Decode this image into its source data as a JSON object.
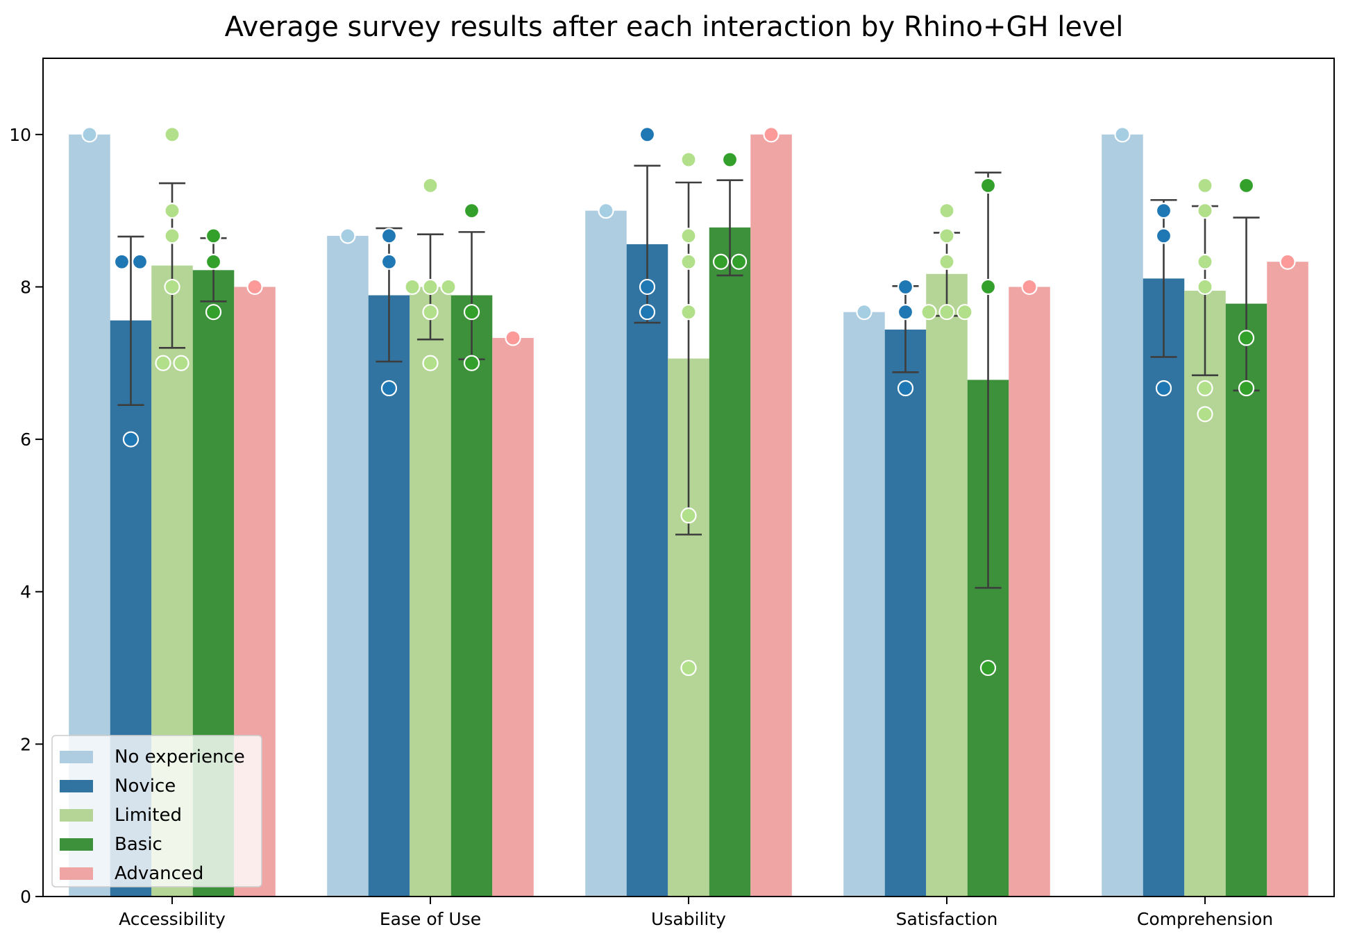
{
  "chart_data": {
    "type": "bar",
    "title": "Average survey results after each interaction by Rhino+GH level",
    "xlabel": "",
    "ylabel": "",
    "ylim": [
      0,
      11
    ],
    "yticks": [
      0,
      2,
      4,
      6,
      8,
      10
    ],
    "grid": false,
    "legend_position": "lower-left",
    "categories": [
      "Accessibility",
      "Ease of Use",
      "Usability",
      "Satisfaction",
      "Comprehension"
    ],
    "series": [
      {
        "name": "No experience",
        "color": "#aecde0",
        "point_color": "#a6cee3",
        "values": [
          10.0,
          8.67,
          9.0,
          7.67,
          10.0
        ],
        "error_low": [
          null,
          null,
          null,
          null,
          null
        ],
        "error_high": [
          null,
          null,
          null,
          null,
          null
        ],
        "points": [
          [
            10.0
          ],
          [
            8.67
          ],
          [
            9.0
          ],
          [
            7.67
          ],
          [
            10.0
          ]
        ]
      },
      {
        "name": "Novice",
        "color": "#3274a1",
        "point_color": "#1f78b4",
        "values": [
          7.56,
          7.89,
          8.56,
          7.44,
          8.11
        ],
        "error_low": [
          6.45,
          7.02,
          7.53,
          6.88,
          7.08
        ],
        "error_high": [
          8.66,
          8.77,
          9.59,
          8.01,
          9.14
        ],
        "points": [
          [
            8.33,
            8.33,
            6.0
          ],
          [
            8.67,
            8.33,
            6.67
          ],
          [
            10.0,
            8.0,
            7.67
          ],
          [
            8.0,
            7.67,
            6.67
          ],
          [
            9.0,
            8.67,
            6.67
          ]
        ]
      },
      {
        "name": "Limited",
        "color": "#b4d595",
        "point_color": "#b2df8a",
        "values": [
          8.28,
          8.0,
          7.06,
          8.17,
          7.95
        ],
        "error_low": [
          7.2,
          7.31,
          4.75,
          7.62,
          6.84
        ],
        "error_high": [
          9.36,
          8.69,
          9.37,
          8.71,
          9.06
        ],
        "points": [
          [
            10.0,
            9.0,
            8.67,
            8.0,
            7.0,
            7.0
          ],
          [
            9.33,
            8.0,
            8.0,
            8.0,
            7.67,
            7.0
          ],
          [
            9.67,
            8.67,
            8.33,
            7.67,
            5.0,
            3.0
          ],
          [
            9.0,
            8.67,
            8.33,
            7.67,
            7.67,
            7.67
          ],
          [
            9.33,
            9.0,
            8.33,
            8.0,
            6.67,
            6.33
          ]
        ]
      },
      {
        "name": "Basic",
        "color": "#3d913a",
        "point_color": "#33a02c",
        "values": [
          8.22,
          7.89,
          8.78,
          6.78,
          7.78
        ],
        "error_low": [
          7.81,
          7.05,
          8.15,
          4.05,
          6.64
        ],
        "error_high": [
          8.64,
          8.72,
          9.4,
          9.5,
          8.91
        ],
        "points": [
          [
            8.67,
            8.33,
            7.67
          ],
          [
            9.0,
            7.67,
            7.0
          ],
          [
            9.67,
            8.33,
            8.33
          ],
          [
            9.33,
            8.0,
            3.0
          ],
          [
            9.33,
            7.33,
            6.67
          ]
        ]
      },
      {
        "name": "Advanced",
        "color": "#f0a5a5",
        "point_color": "#fb9a99",
        "values": [
          8.0,
          7.33,
          10.0,
          8.0,
          8.33
        ],
        "error_low": [
          null,
          null,
          null,
          null,
          null
        ],
        "error_high": [
          null,
          null,
          null,
          null,
          null
        ],
        "points": [
          [
            8.0
          ],
          [
            7.33
          ],
          [
            10.0
          ],
          [
            8.0
          ],
          [
            8.33
          ]
        ]
      }
    ]
  }
}
